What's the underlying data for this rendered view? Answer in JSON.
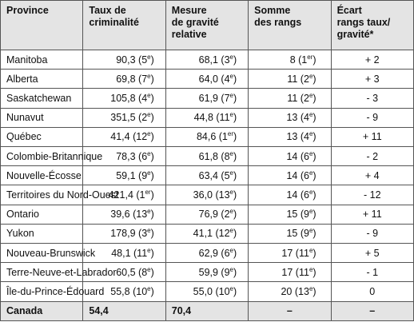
{
  "table": {
    "header": [
      [
        "Province"
      ],
      [
        "Taux de",
        "criminalité"
      ],
      [
        "Mesure",
        "de gravité",
        "relative"
      ],
      [
        "Somme",
        "des rangs"
      ],
      [
        "Écart",
        "rangs taux/",
        "gravité*"
      ]
    ],
    "rows": [
      [
        "Manitoba",
        "90,3 (5e)",
        "68,1 (3e)",
        "8 (1er)",
        "+ 2"
      ],
      [
        "Alberta",
        "69,8 (7e)",
        "64,0 (4e)",
        "11 (2e)",
        "+ 3"
      ],
      [
        "Saskatchewan",
        "105,8 (4e)",
        "61,9 (7e)",
        "11 (2e)",
        "- 3"
      ],
      [
        "Nunavut",
        "351,5 (2e)",
        "44,8 (11e)",
        "13 (4e)",
        "- 9"
      ],
      [
        "Québec",
        "41,4 (12e)",
        "84,6 (1er)",
        "13 (4e)",
        "+ 11"
      ],
      [
        "Colombie-Britannique",
        "78,3 (6e)",
        "61,8 (8e)",
        "14 (6e)",
        "- 2"
      ],
      [
        "Nouvelle-Écosse",
        "59,1 (9e)",
        "63,4 (5e)",
        "14 (6e)",
        "+ 4"
      ],
      [
        "Territoires du Nord-Ouest",
        "421,4 (1er)",
        "36,0 (13e)",
        "14 (6e)",
        "- 12"
      ],
      [
        "Ontario",
        "39,6 (13e)",
        "76,9 (2e)",
        "15 (9e)",
        "+ 11"
      ],
      [
        "Yukon",
        "178,9 (3e)",
        "41,1 (12e)",
        "15 (9e)",
        "- 9"
      ],
      [
        "Nouveau-Brunswick",
        "48,1 (11e)",
        "62,9 (6e)",
        "17 (11e)",
        "+ 5"
      ],
      [
        "Terre-Neuve-et-Labrador",
        "60,5 (8e)",
        "59,9 (9e)",
        "17 (11e)",
        "- 1"
      ],
      [
        "Île-du-Prince-Édouard",
        "55,8 (10e)",
        "55,0 (10e)",
        "20 (13e)",
        "0"
      ]
    ],
    "total": [
      "Canada",
      "54,4",
      "70,4",
      "–",
      "–"
    ]
  }
}
